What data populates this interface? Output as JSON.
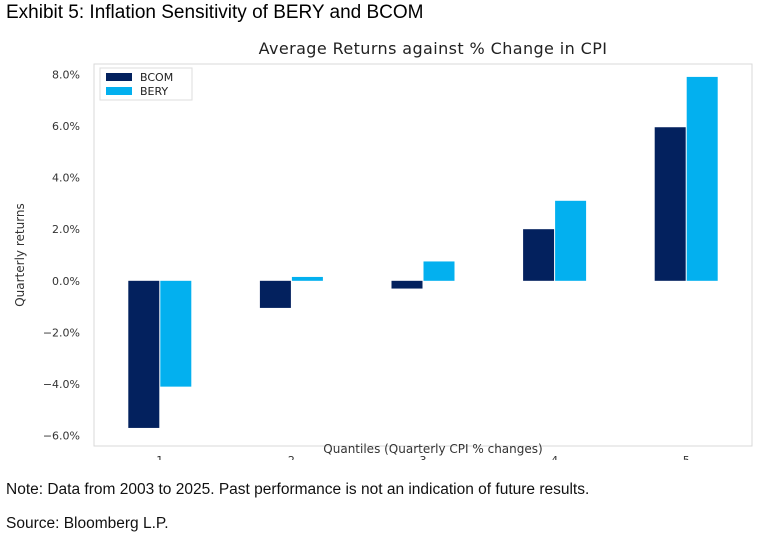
{
  "exhibit_title": "Exhibit 5: Inflation Sensitivity of BERY and BCOM",
  "note": "Note: Data from 2003 to 2025. Past performance is not an indication of future results.",
  "source": "Source: Bloomberg L.P.",
  "chart_data": {
    "type": "bar",
    "title": "Average Returns against % Change in CPI",
    "xlabel": "Quantiles (Quarterly CPI % changes)",
    "ylabel": "Quarterly returns",
    "categories": [
      "1",
      "2",
      "3",
      "4",
      "5"
    ],
    "series": [
      {
        "name": "BCOM",
        "color": "#03215e",
        "values": [
          -5.7,
          -1.05,
          -0.3,
          2.0,
          5.95
        ]
      },
      {
        "name": "BERY",
        "color": "#03b0ef",
        "values": [
          -4.1,
          0.15,
          0.75,
          3.1,
          7.9
        ]
      }
    ],
    "yticks": [
      -6.0,
      -4.0,
      -2.0,
      0.0,
      2.0,
      4.0,
      6.0,
      8.0
    ],
    "ytick_labels": [
      "−6.0%",
      "−4.0%",
      "−2.0%",
      "0.0%",
      "2.0%",
      "4.0%",
      "6.0%",
      "8.0%"
    ],
    "ylim": [
      -6.4,
      8.4
    ],
    "grid": false,
    "legend_position": "top-left"
  }
}
